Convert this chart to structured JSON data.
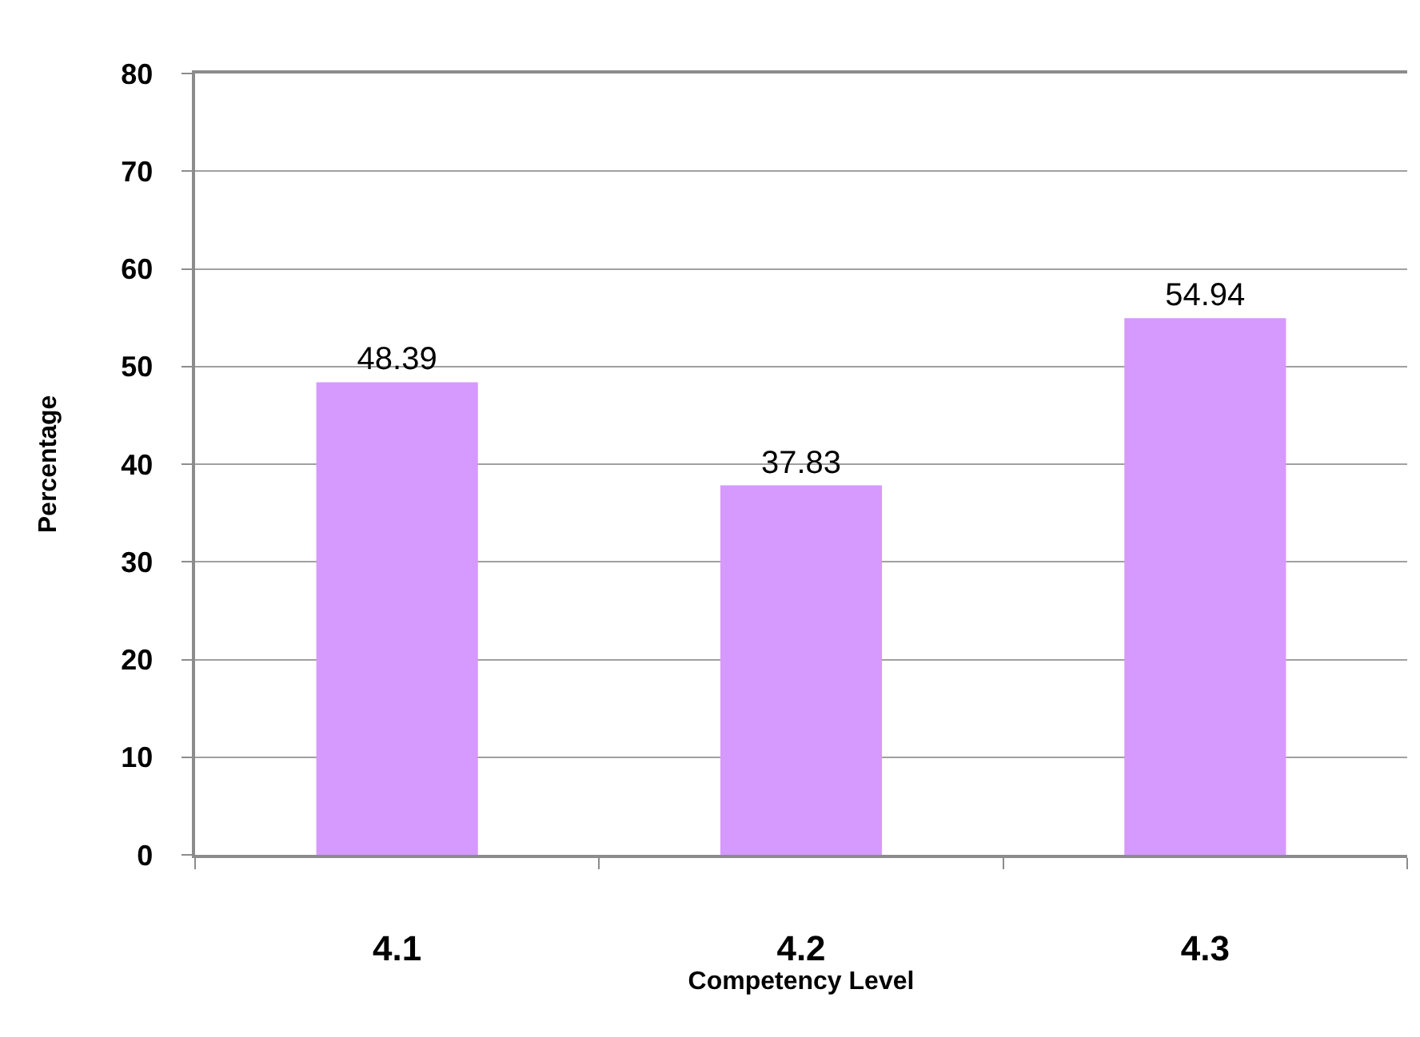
{
  "chart_data": {
    "type": "bar",
    "xlabel": "Competency Level",
    "ylabel": "Percentage",
    "categories": [
      "4.1",
      "4.2",
      "4.3"
    ],
    "values": [
      48.39,
      37.83,
      54.94
    ],
    "color": "#d699fd",
    "ylim": [
      0,
      80
    ],
    "yticks": [
      0,
      10,
      20,
      30,
      40,
      50,
      60,
      70,
      80
    ],
    "grid": "y",
    "data_labels": true,
    "legend": false
  }
}
